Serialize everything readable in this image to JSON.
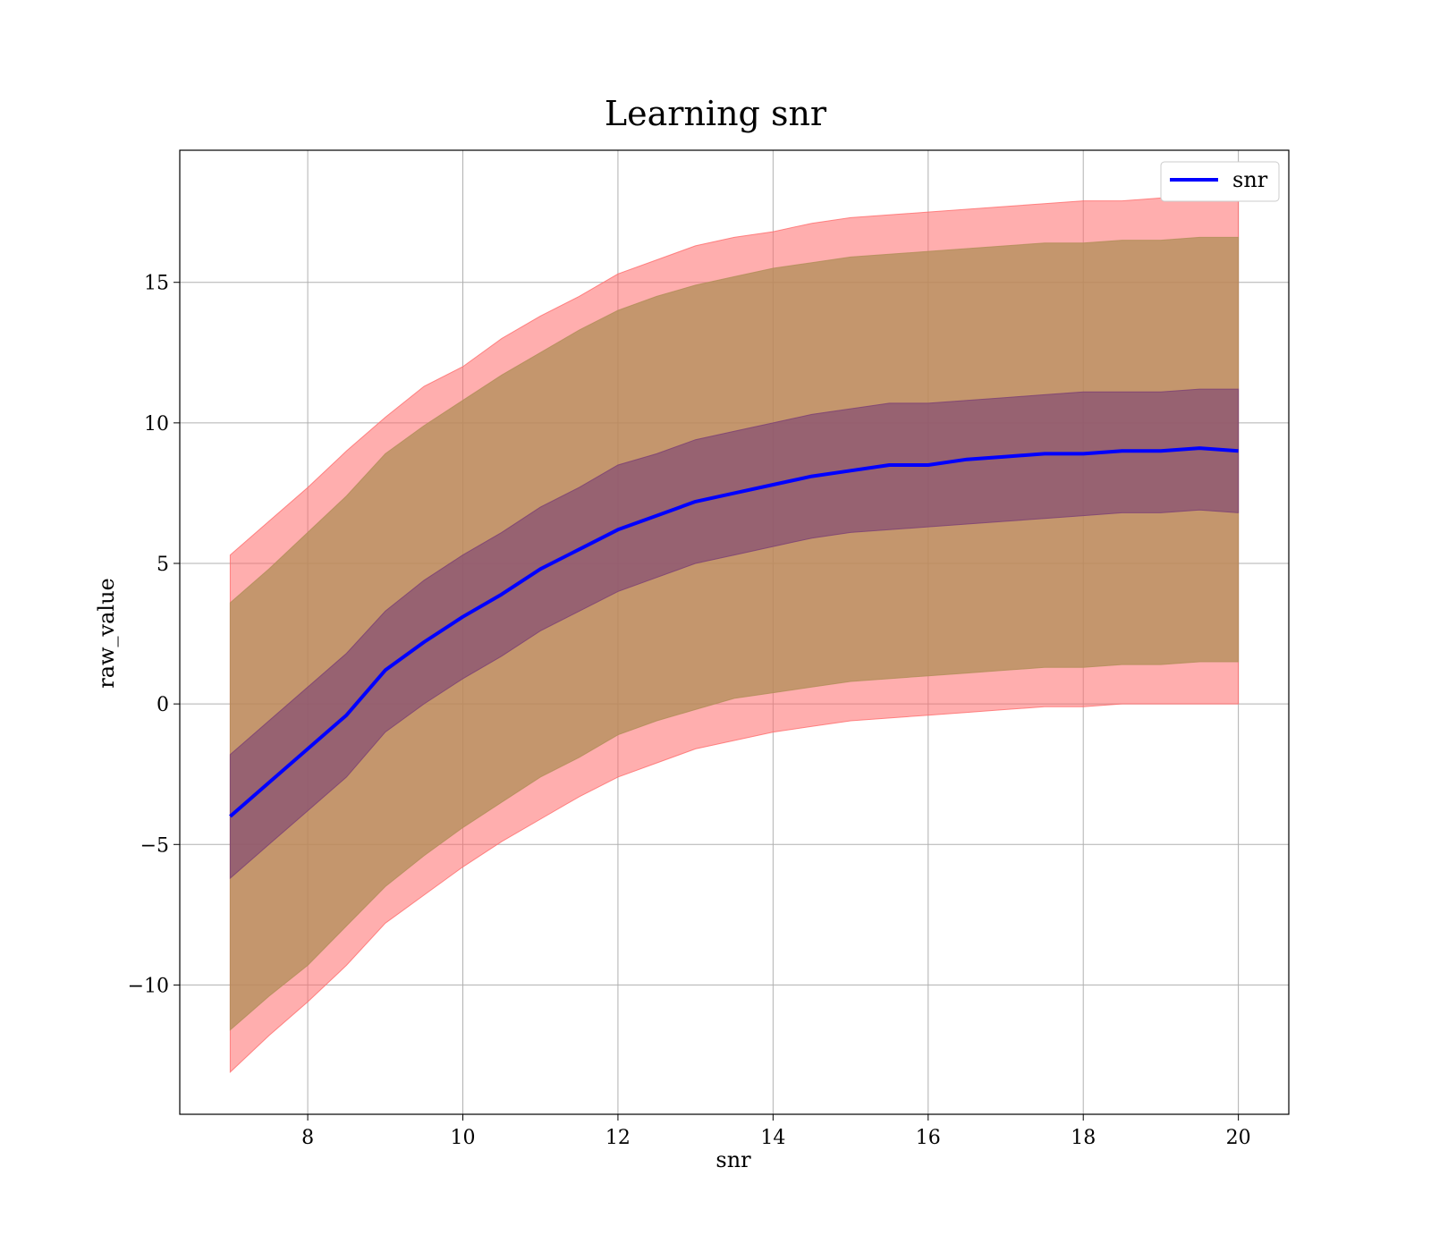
{
  "chart_data": {
    "type": "line",
    "title": "Learning snr",
    "xlabel": "snr",
    "ylabel": "raw_value",
    "xlim": [
      6.35,
      20.65
    ],
    "ylim": [
      -14.6,
      19.7
    ],
    "xticks": [
      8,
      10,
      12,
      14,
      16,
      18,
      20
    ],
    "xtick_labels": [
      "8",
      "10",
      "12",
      "14",
      "16",
      "18",
      "20"
    ],
    "yticks": [
      -10,
      -5,
      0,
      5,
      10,
      15
    ],
    "ytick_labels": [
      "−10",
      "−5",
      "0",
      "5",
      "10",
      "15"
    ],
    "grid": true,
    "legend": {
      "position": "top-right",
      "entries": [
        "snr"
      ]
    },
    "x": [
      7.0,
      7.5,
      8.0,
      8.5,
      9.0,
      9.5,
      10.0,
      10.5,
      11.0,
      11.5,
      12.0,
      12.5,
      13.0,
      13.5,
      14.0,
      14.5,
      15.0,
      15.5,
      16.0,
      16.5,
      17.0,
      17.5,
      18.0,
      18.5,
      19.0,
      19.5,
      20.0
    ],
    "series": [
      {
        "name": "snr",
        "role": "line",
        "values": [
          -4.0,
          -2.8,
          -1.6,
          -0.4,
          1.2,
          2.2,
          3.1,
          3.9,
          4.8,
          5.5,
          6.2,
          6.7,
          7.2,
          7.5,
          7.8,
          8.1,
          8.3,
          8.5,
          8.5,
          8.7,
          8.8,
          8.9,
          8.9,
          9.0,
          9.0,
          9.1,
          9.0
        ]
      },
      {
        "role": "outer-band-upper",
        "values": [
          5.3,
          6.5,
          7.7,
          9.0,
          10.2,
          11.3,
          12.0,
          13.0,
          13.8,
          14.5,
          15.3,
          15.8,
          16.3,
          16.6,
          16.8,
          17.1,
          17.3,
          17.4,
          17.5,
          17.6,
          17.7,
          17.8,
          17.9,
          17.9,
          18.0,
          18.0,
          18.0
        ]
      },
      {
        "role": "outer-band-lower",
        "values": [
          -13.1,
          -11.8,
          -10.6,
          -9.3,
          -7.8,
          -6.8,
          -5.8,
          -4.9,
          -4.1,
          -3.3,
          -2.6,
          -2.1,
          -1.6,
          -1.3,
          -1.0,
          -0.8,
          -0.6,
          -0.5,
          -0.4,
          -0.3,
          -0.2,
          -0.1,
          -0.1,
          0.0,
          0.0,
          0.0,
          0.0
        ]
      },
      {
        "role": "middle-band-upper",
        "values": [
          3.6,
          4.8,
          6.1,
          7.4,
          8.9,
          9.9,
          10.8,
          11.7,
          12.5,
          13.3,
          14.0,
          14.5,
          14.9,
          15.2,
          15.5,
          15.7,
          15.9,
          16.0,
          16.1,
          16.2,
          16.3,
          16.4,
          16.4,
          16.5,
          16.5,
          16.6,
          16.6
        ]
      },
      {
        "role": "middle-band-lower",
        "values": [
          -11.6,
          -10.4,
          -9.3,
          -7.9,
          -6.5,
          -5.4,
          -4.4,
          -3.5,
          -2.6,
          -1.9,
          -1.1,
          -0.6,
          -0.2,
          0.2,
          0.4,
          0.6,
          0.8,
          0.9,
          1.0,
          1.1,
          1.2,
          1.3,
          1.3,
          1.4,
          1.4,
          1.5,
          1.5
        ]
      },
      {
        "role": "inner-band-upper",
        "values": [
          -1.8,
          -0.6,
          0.6,
          1.8,
          3.3,
          4.4,
          5.3,
          6.1,
          7.0,
          7.7,
          8.5,
          8.9,
          9.4,
          9.7,
          10.0,
          10.3,
          10.5,
          10.7,
          10.7,
          10.8,
          10.9,
          11.0,
          11.1,
          11.1,
          11.1,
          11.2,
          11.2
        ]
      },
      {
        "role": "inner-band-lower",
        "values": [
          -6.2,
          -5.0,
          -3.8,
          -2.6,
          -1.0,
          0.0,
          0.9,
          1.7,
          2.6,
          3.3,
          4.0,
          4.5,
          5.0,
          5.3,
          5.6,
          5.9,
          6.1,
          6.2,
          6.3,
          6.4,
          6.5,
          6.6,
          6.7,
          6.8,
          6.8,
          6.9,
          6.8
        ]
      }
    ],
    "colors": {
      "line": "#0000ff",
      "outer_band": "#ff6b6b",
      "middle_band": "#b08d57",
      "inner_band": "#7a3f74",
      "grid": "#b0b0b0"
    }
  }
}
